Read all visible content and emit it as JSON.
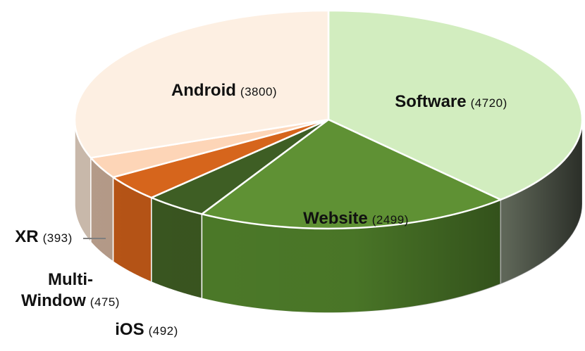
{
  "chart_data": {
    "type": "pie",
    "title": "",
    "slices": [
      {
        "label": "Software",
        "value": 4720,
        "value_text": "(4720)",
        "color_top": "#d2edbf",
        "color_side": "#909c86"
      },
      {
        "label": "Website",
        "value": 2499,
        "value_text": "(2499)",
        "color_top": "#5f9134",
        "color_side": "#4d7b29"
      },
      {
        "label": "iOS",
        "value": 492,
        "value_text": "(492)",
        "color_top": "#3e5e24",
        "color_side": "#3a5620"
      },
      {
        "label": "Multi-Window",
        "label_lines": [
          "Multi-",
          "Window"
        ],
        "value": 475,
        "value_text": "(475)",
        "color_top": "#d6651c",
        "color_side": "#b65416"
      },
      {
        "label": "XR",
        "value": 393,
        "value_text": "(393)",
        "color_top": "#fdd5b7",
        "color_side": "#b49a88"
      },
      {
        "label": "Android",
        "value": 3800,
        "value_text": "(3800)",
        "color_top": "#fdefe2",
        "color_side": "#c8b8aa"
      }
    ],
    "start_angle": "12 o'clock",
    "direction": "clockwise",
    "style": "3d"
  }
}
